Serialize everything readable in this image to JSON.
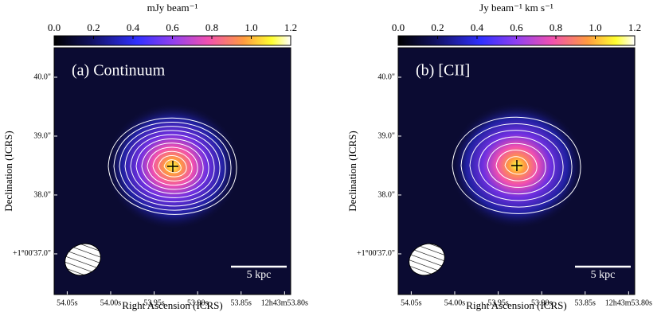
{
  "chart_data": [
    {
      "type": "image",
      "annotation": "(a) Continuum",
      "colorbar_label": "mJy beam⁻¹",
      "clim": [
        0,
        1.2
      ],
      "cticks": [
        {
          "value": 0,
          "label": "0.0"
        },
        0.2,
        0.4,
        0.6,
        0.8,
        {
          "value": 1,
          "label": "1.0"
        },
        1.2
      ],
      "xlabel": "Right Ascension (ICRS)",
      "ylabel": "Declination (ICRS)",
      "xlim": [
        54.065,
        53.793
      ],
      "xticks": [
        {
          "value": 54.05,
          "label": "54.05s"
        },
        {
          "value": 54.0,
          "label": "54.00s"
        },
        {
          "value": 53.95,
          "label": "53.95s"
        },
        {
          "value": 53.9,
          "label": "53.90s"
        },
        {
          "value": 53.85,
          "label": "53.85s"
        },
        {
          "value": 53.8,
          "label": "12h43m53.80s"
        }
      ],
      "ylim": [
        36.31,
        40.5
      ],
      "yticks": [
        {
          "value": 40,
          "label": "40.0\""
        },
        {
          "value": 39,
          "label": "39.0\""
        },
        {
          "value": 38,
          "label": "38.0\""
        },
        {
          "value": 37,
          "label": "+1°00'37.0\""
        }
      ],
      "scale_bar": "5 kpc"
    },
    {
      "type": "image",
      "annotation": "(b) [CII]",
      "colorbar_label": "Jy beam⁻¹ km s⁻¹",
      "clim": [
        0,
        1.2
      ],
      "cticks": [
        {
          "value": 0,
          "label": "0.0"
        },
        0.2,
        0.4,
        0.6,
        0.8,
        {
          "value": 1,
          "label": "1.0"
        },
        1.2
      ],
      "xlabel": "Right Ascension (ICRS)",
      "ylabel": "Declination (ICRS)",
      "xlim": [
        54.065,
        53.793
      ],
      "xticks": [
        {
          "value": 54.05,
          "label": "54.05s"
        },
        {
          "value": 54.0,
          "label": "54.00s"
        },
        {
          "value": 53.95,
          "label": "53.95s"
        },
        {
          "value": 53.9,
          "label": "53.90s"
        },
        {
          "value": 53.85,
          "label": "53.85s"
        },
        {
          "value": 53.8,
          "label": "12h43m53.80s"
        }
      ],
      "ylim": [
        36.31,
        40.5
      ],
      "yticks": [
        {
          "value": 40,
          "label": "40.0\""
        },
        {
          "value": 39,
          "label": "39.0\""
        },
        {
          "value": 38,
          "label": "38.0\""
        },
        {
          "value": 37,
          "label": "+1°00'37.0\""
        }
      ],
      "scale_bar": "5 kpc"
    }
  ]
}
